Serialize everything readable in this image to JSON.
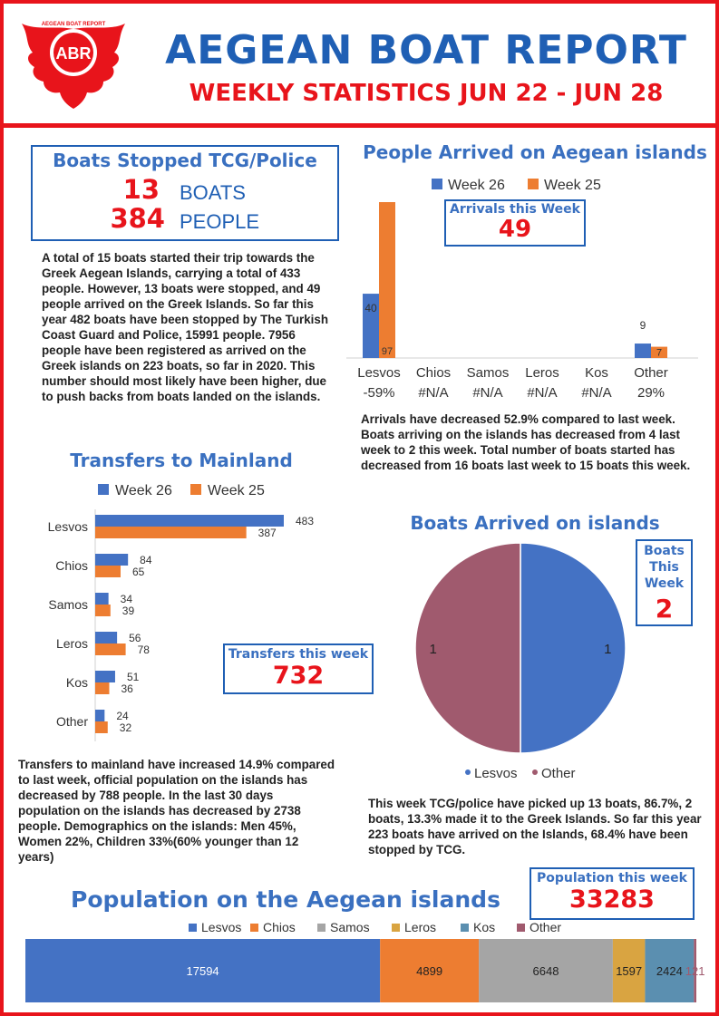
{
  "header": {
    "logo_text": "ABR",
    "logo_ring_text": "AEGEAN BOAT REPORT",
    "title": "AEGEAN BOAT REPORT",
    "subtitle": "WEEKLY STATISTICS JUN 22 - JUN 28"
  },
  "stopped": {
    "title": "Boats Stopped TCG/Police",
    "boats_value": "13",
    "boats_label": "BOATS",
    "people_value": "384",
    "people_label": "PEOPLE"
  },
  "summary_text": "A total of 15  boats started their trip towards the Greek Aegean Islands, carrying a total of 433 people. However, 13 boats were stopped, and 49 people arrived on the Greek Islands. So far this year 482 boats have been stopped by The Turkish Coast Guard and Police, 15991 people. 7956  people have been registered as arrived on the Greek islands on 223 boats, so far in 2020. This number should most likely have been higher, due to push backs from boats landed on the islands.",
  "arrivals_box": {
    "label": "Arrivals this Week",
    "value": "49"
  },
  "arrivals_text": "Arrivals have decreased 52.9% compared to last week. Boats arriving on the islands has decreased from 4 last week to 2 this week. Total number of boats started has decreased from 16 boats last week to 15 boats this week.",
  "transfers_box": {
    "label": "Transfers this week",
    "value": "732"
  },
  "transfers_text": "Transfers to mainland have increased 14.9% compared to last week, official population on the islands has decreased  by 788 people. In the last 30 days population on the islands has decreased by 2738 people. Demographics on the islands: Men 45%, Women 22%, Children 33%(60% younger than 12 years)",
  "boats_box": {
    "label_lines": [
      "Boats",
      "This",
      "Week"
    ],
    "value": "2"
  },
  "boats_text": "This week TCG/police have picked up 13 boats, 86.7%, 2 boats, 13.3% made it to the Greek Islands. So far this year 223 boats have arrived on the Islands, 68.4% have been stopped by TCG.",
  "population_box": {
    "label": "Population this week",
    "value": "33283"
  },
  "colors": {
    "week26": "#4472c4",
    "week25": "#ed7d31",
    "samos": "#a5a5a5",
    "leros": "#d9a441",
    "kos": "#5b8fb0",
    "other": "#a05a6e",
    "red": "#e8141b",
    "blue": "#1f5fb4"
  },
  "chart_data": [
    {
      "type": "bar",
      "title": "People Arrived on Aegean islands",
      "categories": [
        "Lesvos",
        "Chios",
        "Samos",
        "Leros",
        "Kos",
        "Other"
      ],
      "category_changes": [
        "-59%",
        "#N/A",
        "#N/A",
        "#N/A",
        "#N/A",
        "29%"
      ],
      "series": [
        {
          "name": "Week 26",
          "values": [
            40,
            0,
            0,
            0,
            0,
            9
          ],
          "labels": [
            "40",
            "",
            "",
            "",
            "",
            "9"
          ]
        },
        {
          "name": "Week 25",
          "values": [
            97,
            0,
            0,
            0,
            0,
            7
          ],
          "labels": [
            "97",
            "",
            "",
            "",
            "",
            "7"
          ]
        }
      ],
      "ylim": [
        0,
        97
      ],
      "legend": "top"
    },
    {
      "type": "bar",
      "orientation": "horizontal",
      "title": "Transfers to Mainland",
      "categories": [
        "Lesvos",
        "Chios",
        "Samos",
        "Leros",
        "Kos",
        "Other"
      ],
      "series": [
        {
          "name": "Week 26",
          "values": [
            483,
            84,
            34,
            56,
            51,
            24
          ]
        },
        {
          "name": "Week 25",
          "values": [
            387,
            65,
            39,
            78,
            36,
            32
          ]
        }
      ],
      "xlim": [
        0,
        483
      ],
      "legend": "top"
    },
    {
      "type": "pie",
      "title": "Boats Arrived on islands",
      "categories": [
        "Lesvos",
        "Other"
      ],
      "values": [
        1,
        1
      ],
      "legend": "bottom"
    },
    {
      "type": "bar",
      "orientation": "stacked-horizontal",
      "title": "Population on the Aegean islands",
      "series": [
        {
          "name": "Lesvos",
          "values": [
            17594
          ]
        },
        {
          "name": "Chios",
          "values": [
            4899
          ]
        },
        {
          "name": "Samos",
          "values": [
            6648
          ]
        },
        {
          "name": "Leros",
          "values": [
            1597
          ]
        },
        {
          "name": "Kos",
          "values": [
            2424
          ]
        },
        {
          "name": "Other",
          "values": [
            121
          ]
        }
      ],
      "legend": "top"
    }
  ]
}
